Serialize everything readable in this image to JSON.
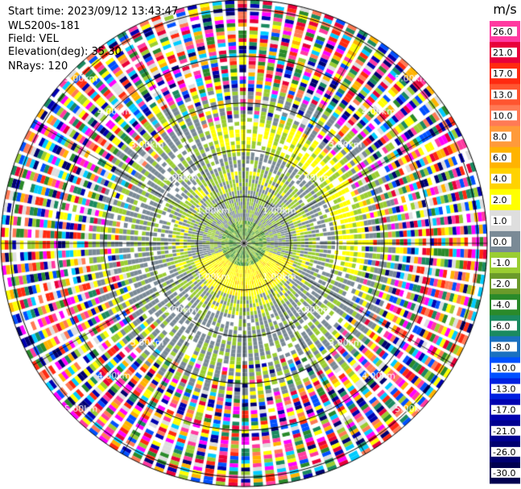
{
  "header": {
    "start_time": "Start time: 2023/09/12 13:43:47",
    "instrument": "WLS200s-181",
    "field": "Field: VEL",
    "elevation": "Elevation(deg): 35.30",
    "nrays": "NRays: 120"
  },
  "colorbar": {
    "unit": "m/s",
    "levels": [
      {
        "label": "26.0",
        "color": "#ff3aa0"
      },
      {
        "label": "21.0",
        "color": "#e8003a"
      },
      {
        "label": "17.0",
        "color": "#ff2a10"
      },
      {
        "label": "13.0",
        "color": "#ff5530"
      },
      {
        "label": "10.0",
        "color": "#ff7a55"
      },
      {
        "label": "8.0",
        "color": "#ff9a3a"
      },
      {
        "label": "6.0",
        "color": "#ffb300"
      },
      {
        "label": "4.0",
        "color": "#ffd200"
      },
      {
        "label": "2.0",
        "color": "#ffff00"
      },
      {
        "label": "1.0",
        "color": "#dedede"
      },
      {
        "label": "0.0",
        "color": "#7a8a96"
      },
      {
        "label": "-1.0",
        "color": "#9acd32"
      },
      {
        "label": "-2.0",
        "color": "#6b9a2a"
      },
      {
        "label": "-4.0",
        "color": "#2a8a2a"
      },
      {
        "label": "-6.0",
        "color": "#1a8a60"
      },
      {
        "label": "-8.0",
        "color": "#1a70c0"
      },
      {
        "label": "-10.0",
        "color": "#0050ff"
      },
      {
        "label": "-13.0",
        "color": "#0020e0"
      },
      {
        "label": "-17.0",
        "color": "#0000b0"
      },
      {
        "label": "-21.0",
        "color": "#000090"
      },
      {
        "label": "-26.0",
        "color": "#000070"
      },
      {
        "label": "-30.0",
        "color": "#000050"
      }
    ]
  },
  "chart_data": {
    "type": "heatmap",
    "projection": "polar-ppi",
    "field": "VEL",
    "unit": "m/s",
    "range_ring_labels": [
      "1.00km",
      "2.00km",
      "3.00km",
      "4.00km",
      "5.00km"
    ],
    "range_rings_km": [
      1,
      2,
      3,
      4,
      5
    ],
    "max_range_km": 5.2,
    "rays": 120,
    "spokes_deg": [
      0,
      30,
      60,
      90,
      120,
      150,
      180,
      210,
      240,
      270,
      300,
      330
    ],
    "vmin": -30,
    "vmax": 30,
    "grid": true
  }
}
